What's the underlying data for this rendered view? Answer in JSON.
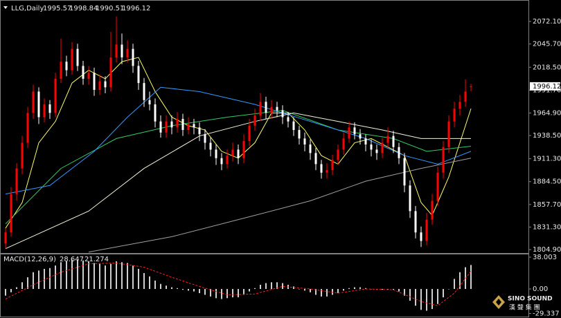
{
  "chart_data": [
    {
      "type": "candlestick",
      "title": "LLG,Daily",
      "up_color": "#ff0000",
      "down_color": "#ffffff",
      "candles": [
        [
          1812,
          1830,
          1806,
          1825
        ],
        [
          1825,
          1878,
          1820,
          1870
        ],
        [
          1870,
          1906,
          1862,
          1900
        ],
        [
          1900,
          1938,
          1893,
          1930
        ],
        [
          1930,
          1972,
          1924,
          1965
        ],
        [
          1965,
          1998,
          1958,
          1990
        ],
        [
          1990,
          1995,
          1952,
          1960
        ],
        [
          1960,
          1982,
          1954,
          1975
        ],
        [
          1975,
          1980,
          1958,
          1965
        ],
        [
          1965,
          2012,
          1960,
          2005
        ],
        [
          2005,
          2052,
          2000,
          2025
        ],
        [
          2025,
          2032,
          2008,
          2015
        ],
        [
          2015,
          2048,
          2010,
          2040
        ],
        [
          2040,
          2046,
          2014,
          2020
        ],
        [
          2020,
          2026,
          1998,
          2005
        ],
        [
          2005,
          2020,
          1998,
          2012
        ],
        [
          2012,
          2018,
          1985,
          1992
        ],
        [
          1992,
          2010,
          1986,
          2002
        ],
        [
          2002,
          2008,
          1988,
          1995
        ],
        [
          1995,
          2060,
          1990,
          2030
        ],
        [
          2030,
          2078,
          2024,
          2045
        ],
        [
          2045,
          2058,
          2022,
          2030
        ],
        [
          2030,
          2050,
          2024,
          2040
        ],
        [
          2040,
          2046,
          2012,
          2020
        ],
        [
          2020,
          2026,
          1992,
          2000
        ],
        [
          2000,
          2006,
          1972,
          1980
        ],
        [
          1980,
          1990,
          1968,
          1975
        ],
        [
          1975,
          1982,
          1948,
          1955
        ],
        [
          1955,
          1962,
          1936,
          1942
        ],
        [
          1942,
          1962,
          1936,
          1955
        ],
        [
          1955,
          1962,
          1940,
          1948
        ],
        [
          1948,
          1966,
          1942,
          1958
        ],
        [
          1958,
          1964,
          1938,
          1945
        ],
        [
          1945,
          1960,
          1940,
          1952
        ],
        [
          1952,
          1958,
          1940,
          1948
        ],
        [
          1948,
          1954,
          1932,
          1940
        ],
        [
          1940,
          1946,
          1922,
          1930
        ],
        [
          1930,
          1936,
          1914,
          1922
        ],
        [
          1922,
          1928,
          1904,
          1912
        ],
        [
          1912,
          1918,
          1898,
          1905
        ],
        [
          1905,
          1922,
          1900,
          1915
        ],
        [
          1915,
          1930,
          1908,
          1922
        ],
        [
          1922,
          1928,
          1905,
          1912
        ],
        [
          1912,
          1940,
          1906,
          1932
        ],
        [
          1932,
          1958,
          1926,
          1950
        ],
        [
          1950,
          1970,
          1944,
          1962
        ],
        [
          1962,
          1988,
          1956,
          1978
        ],
        [
          1978,
          1984,
          1958,
          1965
        ],
        [
          1965,
          1980,
          1958,
          1972
        ],
        [
          1972,
          1978,
          1960,
          1968
        ],
        [
          1968,
          1974,
          1952,
          1960
        ],
        [
          1960,
          1966,
          1948,
          1955
        ],
        [
          1955,
          1960,
          1938,
          1945
        ],
        [
          1945,
          1950,
          1928,
          1935
        ],
        [
          1935,
          1942,
          1920,
          1928
        ],
        [
          1928,
          1934,
          1910,
          1918
        ],
        [
          1918,
          1924,
          1898,
          1905
        ],
        [
          1905,
          1910,
          1888,
          1895
        ],
        [
          1895,
          1906,
          1888,
          1898
        ],
        [
          1898,
          1916,
          1892,
          1910
        ],
        [
          1910,
          1928,
          1904,
          1922
        ],
        [
          1922,
          1942,
          1916,
          1935
        ],
        [
          1935,
          1955,
          1930,
          1948
        ],
        [
          1948,
          1954,
          1934,
          1940
        ],
        [
          1940,
          1946,
          1928,
          1935
        ],
        [
          1935,
          1940,
          1920,
          1928
        ],
        [
          1928,
          1934,
          1914,
          1922
        ],
        [
          1922,
          1928,
          1910,
          1918
        ],
        [
          1918,
          1936,
          1912,
          1930
        ],
        [
          1930,
          1948,
          1924,
          1938
        ],
        [
          1938,
          1944,
          1918,
          1925
        ],
        [
          1925,
          1930,
          1905,
          1912
        ],
        [
          1912,
          1918,
          1872,
          1880
        ],
        [
          1880,
          1886,
          1842,
          1850
        ],
        [
          1850,
          1856,
          1818,
          1825
        ],
        [
          1825,
          1832,
          1808,
          1815
        ],
        [
          1815,
          1848,
          1810,
          1840
        ],
        [
          1840,
          1870,
          1834,
          1862
        ],
        [
          1862,
          1902,
          1856,
          1895
        ],
        [
          1895,
          1932,
          1888,
          1925
        ],
        [
          1925,
          1962,
          1918,
          1955
        ],
        [
          1955,
          1978,
          1948,
          1970
        ],
        [
          1970,
          1986,
          1962,
          1978
        ],
        [
          1978,
          2004,
          1972,
          1990
        ],
        [
          1995.57,
          1998.84,
          1990.51,
          1996.12
        ]
      ],
      "overlays": [
        {
          "color": "#ffff66",
          "x": [
            0,
            3,
            6,
            9,
            12,
            15,
            18,
            21,
            24,
            27,
            30,
            33,
            36,
            39,
            42,
            45,
            48,
            51,
            54,
            57,
            60,
            63,
            66,
            69,
            72,
            75,
            77,
            80,
            84
          ],
          "values": [
            1830,
            1860,
            1930,
            1955,
            2000,
            2015,
            2005,
            2025,
            2030,
            1990,
            1960,
            1950,
            1945,
            1920,
            1912,
            1930,
            1965,
            1965,
            1945,
            1915,
            1905,
            1930,
            1935,
            1925,
            1915,
            1860,
            1845,
            1890,
            1970
          ]
        },
        {
          "color": "#33cc66",
          "x": [
            0,
            10,
            20,
            30,
            40,
            50,
            60,
            70,
            76,
            84
          ],
          "values": [
            1835,
            1900,
            1935,
            1950,
            1960,
            1968,
            1945,
            1935,
            1920,
            1926
          ]
        },
        {
          "color": "#3399ff",
          "x": [
            0,
            8,
            16,
            22,
            28,
            35,
            45,
            55,
            65,
            72,
            78,
            84
          ],
          "values": [
            1870,
            1880,
            1920,
            1960,
            1995,
            1990,
            1975,
            1955,
            1935,
            1915,
            1905,
            1920
          ]
        },
        {
          "color": "#f5f5dc",
          "x": [
            0,
            15,
            25,
            35,
            45,
            52,
            60,
            68,
            75,
            84
          ],
          "values": [
            1806,
            1850,
            1900,
            1938,
            1955,
            1965,
            1955,
            1945,
            1935,
            1935
          ]
        },
        {
          "color": "#a0a0a0",
          "x": [
            15,
            30,
            45,
            55,
            65,
            75,
            84
          ],
          "values": [
            1802,
            1820,
            1845,
            1862,
            1885,
            1900,
            1912
          ]
        }
      ],
      "ylim": [
        1801.7,
        2093.2
      ],
      "yticks": [
        {
          "value": 2072.1,
          "label": "2072.10"
        },
        {
          "value": 2045.7,
          "label": "2045.70"
        },
        {
          "value": 2018.5,
          "label": "2018.50"
        },
        {
          "value": 1991.7,
          "label": "1991.70"
        },
        {
          "value": 1964.9,
          "label": "1964.90"
        },
        {
          "value": 1938.5,
          "label": "1938.50"
        },
        {
          "value": 1911.3,
          "label": "1911.30"
        },
        {
          "value": 1884.5,
          "label": "1884.50"
        },
        {
          "value": 1857.7,
          "label": "1857.70"
        },
        {
          "value": 1831.3,
          "label": "1831.30"
        },
        {
          "value": 1804.9,
          "label": "1804.90"
        }
      ]
    },
    {
      "type": "macd",
      "title": "MACD(12,26,9)",
      "histogram": {
        "color": "#d0d0d0",
        "values": [
          -8,
          -4,
          2,
          8,
          14,
          20,
          22,
          24,
          25,
          28,
          32,
          33,
          35,
          35,
          34,
          33,
          31,
          30,
          28,
          30,
          33,
          32,
          31,
          28,
          24,
          19,
          15,
          10,
          6,
          4,
          2,
          1,
          -1,
          -2,
          -3,
          -5,
          -7,
          -9,
          -11,
          -12,
          -11,
          -10,
          -10,
          -7,
          -3,
          1,
          5,
          7,
          8,
          8,
          7,
          5,
          3,
          0,
          -2,
          -4,
          -7,
          -9,
          -9,
          -7,
          -5,
          -2,
          1,
          2,
          2,
          1,
          0,
          -1,
          -1,
          0,
          -1,
          -3,
          -8,
          -14,
          -20,
          -25,
          -26,
          -24,
          -18,
          -10,
          0,
          12,
          20,
          26,
          28.647
        ]
      },
      "signal": {
        "color": "#ff2020",
        "x": [
          0,
          5,
          10,
          15,
          20,
          25,
          30,
          35,
          40,
          45,
          50,
          55,
          60,
          65,
          70,
          75,
          78,
          81,
          84
        ],
        "values": [
          -12,
          5,
          20,
          30,
          31,
          26,
          14,
          3,
          -7,
          -6,
          3,
          0,
          -5,
          0,
          -1,
          -15,
          -20,
          -5,
          21.274
        ]
      },
      "ylim": [
        -33.05,
        41.3
      ],
      "yticks": [
        38.003,
        {
          "value": 0,
          "label": "0.00"
        },
        -29.337
      ]
    }
  ],
  "logo": {
    "name": "SINO SOUND",
    "subtitle": "漢 聲 集 團"
  }
}
